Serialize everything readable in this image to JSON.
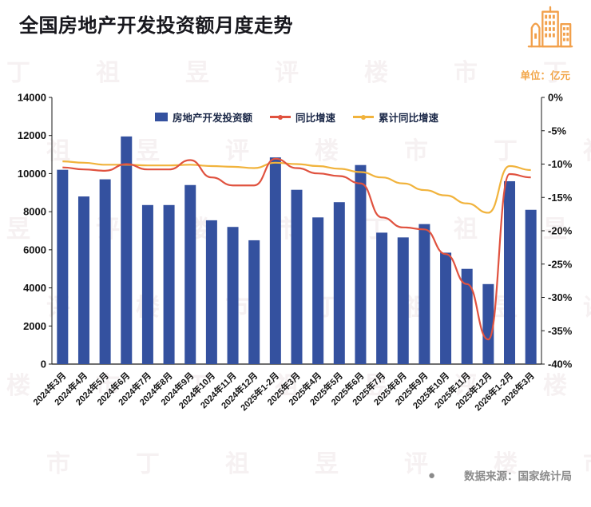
{
  "page": {
    "title": "全国房地产开发投资额月度走势",
    "unit_label": "单位：亿元",
    "source_dot": "●",
    "source_label": "数据来源：国家统计局",
    "watermark_text": "丁祖昱评楼市"
  },
  "colors": {
    "title_text": "#17171d",
    "bar": "#34519F",
    "yoy_line": "#E0523F",
    "cumulative_line": "#F1B33C",
    "axis": "#1a1a1a",
    "axis_label": "#141414",
    "legend_text": "#1A2747",
    "unit_label": "#F2A649",
    "source_text": "#8C8C8C",
    "icon": "#F2A04B"
  },
  "chart_data": {
    "type": "combo-bar-line",
    "title": "全国房地产开发投资额月度走势",
    "unit": "亿元",
    "grid": false,
    "legend_position": "top-center",
    "categories": [
      "2024年3月",
      "2024年4月",
      "2024年5月",
      "2024年6月",
      "2024年7月",
      "2024年8月",
      "2024年9月",
      "2024年10月",
      "2024年11月",
      "2024年12月",
      "2025年1-2月",
      "2025年3月",
      "2025年4月",
      "2025年5月",
      "2025年6月",
      "2025年7月",
      "2025年8月",
      "2025年9月",
      "2025年10月",
      "2025年11月",
      "2025年12月",
      "2026年1-2月",
      "2026年3月"
    ],
    "series": [
      {
        "name": "房地产开发投资额",
        "type": "bar",
        "axis": "left",
        "color": "#34519F",
        "values": [
          10200,
          8800,
          9700,
          11950,
          8350,
          8350,
          9400,
          7550,
          7200,
          6500,
          10850,
          9150,
          7700,
          8500,
          10450,
          6900,
          6650,
          7350,
          5850,
          5000,
          4200,
          9600,
          8100
        ]
      },
      {
        "name": "同比增速",
        "type": "line",
        "axis": "right",
        "color": "#E0523F",
        "values": [
          -10.5,
          -10.8,
          -11.0,
          -10.0,
          -10.8,
          -10.8,
          -9.4,
          -12.0,
          -13.2,
          -13.2,
          -9.2,
          -10.6,
          -11.4,
          -11.8,
          -12.9,
          -18.0,
          -19.5,
          -19.8,
          -23.5,
          -28.0,
          -36.3,
          -11.5,
          -12.0
        ]
      },
      {
        "name": "累计同比增速",
        "type": "line",
        "axis": "right",
        "color": "#F1B33C",
        "values": [
          -9.6,
          -9.8,
          -10.1,
          -10.1,
          -10.2,
          -10.2,
          -10.1,
          -10.3,
          -10.4,
          -10.6,
          -9.8,
          -10.0,
          -10.3,
          -10.7,
          -11.2,
          -12.0,
          -12.9,
          -13.9,
          -14.7,
          -15.9,
          -17.3,
          -10.3,
          -10.9
        ]
      }
    ],
    "left_axis": {
      "min": 0,
      "max": 14000,
      "ticks": [
        14000,
        12000,
        10000,
        8000,
        6000,
        4000,
        2000,
        0
      ]
    },
    "right_axis": {
      "min": -40,
      "max": 0,
      "ticks": [
        0,
        -5,
        -10,
        -15,
        -20,
        -25,
        -30,
        -35,
        -40
      ],
      "format": "percent"
    }
  }
}
